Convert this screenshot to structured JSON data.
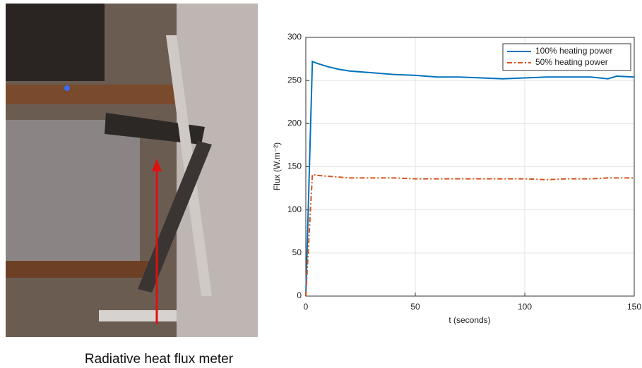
{
  "caption": "Radiative heat flux meter",
  "chart_data": {
    "type": "line",
    "xlabel": "t (seconds)",
    "ylabel": "Flux (W.m⁻²)",
    "x": [
      0,
      3,
      5,
      10,
      15,
      20,
      30,
      40,
      50,
      60,
      70,
      80,
      90,
      100,
      110,
      120,
      130,
      138,
      142,
      150
    ],
    "series": [
      {
        "name": "100% heating power",
        "color": "#0072bd",
        "dash": "solid",
        "values": [
          0,
          272,
          270,
          266,
          263,
          261,
          259,
          257,
          256,
          254,
          254,
          253,
          252,
          253,
          254,
          254,
          254,
          252,
          255,
          254
        ]
      },
      {
        "name": "50% heating power",
        "color": "#d95319",
        "dash": "dashdot",
        "values": [
          0,
          141,
          140,
          139,
          138,
          137,
          137,
          137,
          136,
          136,
          136,
          136,
          136,
          136,
          135,
          136,
          136,
          137,
          137,
          137
        ]
      }
    ],
    "xlim": [
      0,
      150
    ],
    "xticks": [
      0,
      50,
      100,
      150
    ],
    "ylim": [
      0,
      300
    ],
    "yticks": [
      0,
      50,
      100,
      150,
      200,
      250,
      300
    ],
    "grid": true,
    "legend": "upper-right"
  }
}
